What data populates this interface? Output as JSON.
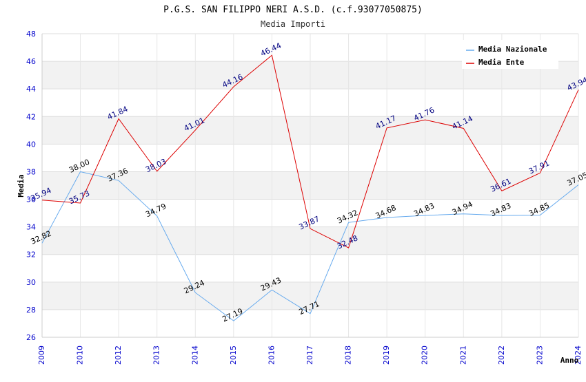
{
  "chart_data": {
    "type": "line",
    "title": "P.G.S. SAN FILIPPO NERI A.S.D. (c.f.93077050875)",
    "subtitle": "Media Importi",
    "xlabel": "Anno",
    "ylabel": "Media",
    "ylim": [
      26,
      48
    ],
    "yticks": [
      26,
      28,
      30,
      32,
      34,
      36,
      38,
      40,
      42,
      44,
      46,
      48
    ],
    "categories": [
      "2009",
      "2010",
      "2012",
      "2013",
      "2014",
      "2015",
      "2016",
      "2017",
      "2018",
      "2019",
      "2020",
      "2021",
      "2022",
      "2023",
      "2024"
    ],
    "grid": true,
    "legend_position": "top-right",
    "series": [
      {
        "name": "Media Nazionale",
        "color": "#66aaee",
        "label_color": "#000000",
        "values": [
          32.82,
          38.0,
          37.36,
          34.79,
          29.24,
          27.19,
          29.43,
          27.71,
          34.32,
          34.68,
          34.83,
          34.94,
          34.83,
          34.85,
          37.05
        ],
        "labels": [
          "32.82",
          "38.00",
          "37.36",
          "34.79",
          "29.24",
          "27.19",
          "29.43",
          "27.71",
          "34.32",
          "34.68",
          "34.83",
          "34.94",
          "34.83",
          "34.85",
          "37.05"
        ]
      },
      {
        "name": "Media Ente",
        "color": "#dd0000",
        "label_color": "#000080",
        "values": [
          35.94,
          35.73,
          41.84,
          38.03,
          41.01,
          44.16,
          46.44,
          33.87,
          32.48,
          41.17,
          41.76,
          41.14,
          36.61,
          37.91,
          43.94
        ],
        "labels": [
          "35.94",
          "35.73",
          "41.84",
          "38.03",
          "41.01",
          "44.16",
          "46.44",
          "33.87",
          "32.48",
          "41.17",
          "41.76",
          "41.14",
          "36.61",
          "37.91",
          "43.94"
        ]
      }
    ]
  }
}
